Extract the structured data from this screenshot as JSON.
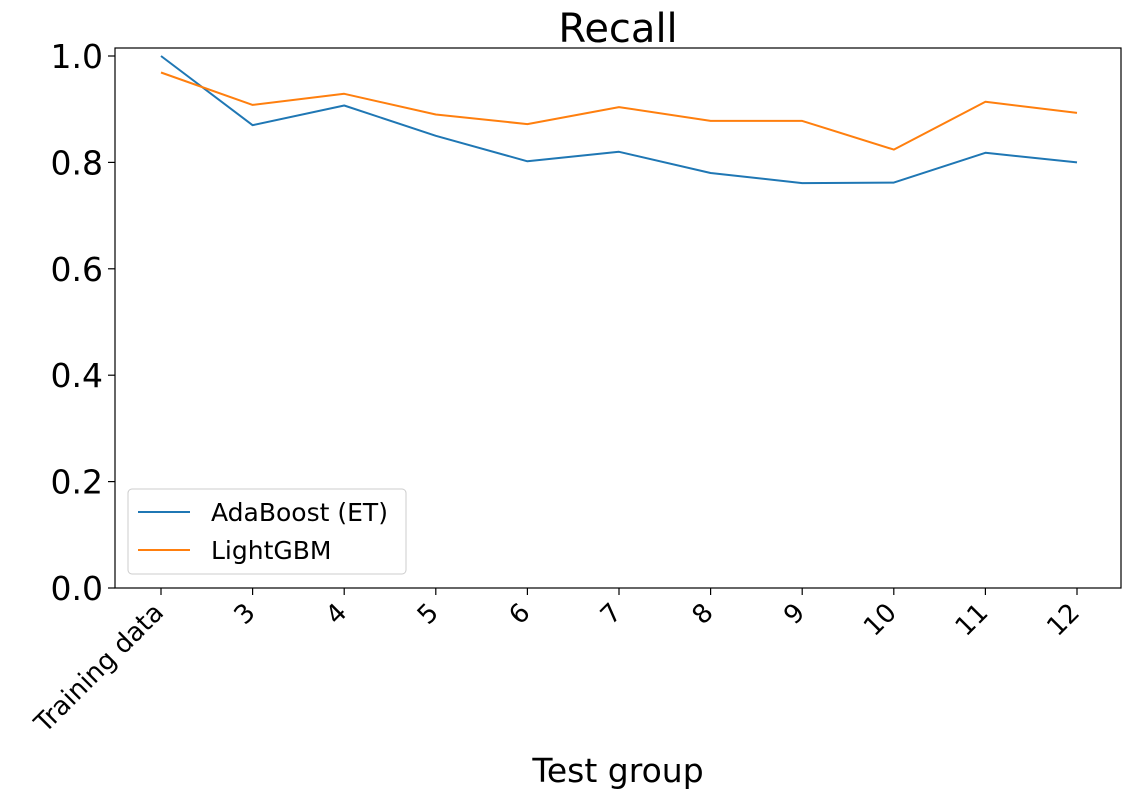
{
  "chart_data": {
    "type": "line",
    "title": "Recall",
    "xlabel": "Test group",
    "ylabel": "",
    "categories": [
      "Training data",
      "3",
      "4",
      "5",
      "6",
      "7",
      "8",
      "9",
      "10",
      "11",
      "12"
    ],
    "ylim": [
      0.0,
      1.0
    ],
    "yticks": [
      "0.0",
      "0.2",
      "0.4",
      "0.6",
      "0.8",
      "1.0"
    ],
    "grid": false,
    "legend_position": "lower-left",
    "series": [
      {
        "name": "AdaBoost (ET)",
        "color": "#1f77b4",
        "values": [
          1.0,
          0.87,
          0.907,
          0.85,
          0.802,
          0.82,
          0.78,
          0.761,
          0.762,
          0.818,
          0.8
        ]
      },
      {
        "name": "LightGBM",
        "color": "#ff7f0e",
        "values": [
          0.969,
          0.908,
          0.929,
          0.89,
          0.872,
          0.904,
          0.878,
          0.878,
          0.824,
          0.914,
          0.893
        ]
      }
    ]
  }
}
